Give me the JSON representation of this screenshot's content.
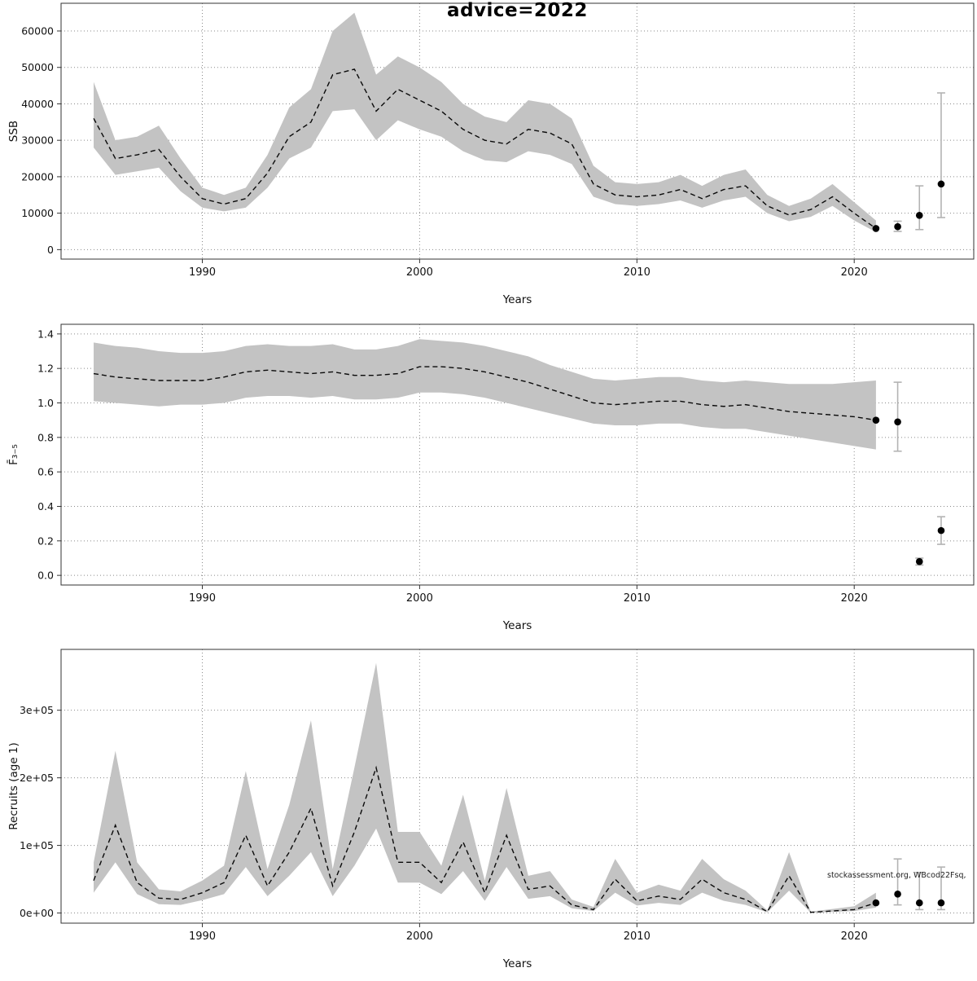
{
  "title": "advice=2022",
  "watermark": "stockassessment.org, WBcod22Fsq,",
  "xlabel": "Years",
  "chart_data": [
    {
      "type": "line",
      "title": "advice=2022",
      "ylabel": "SSB",
      "xlabel": "Years",
      "xlim": [
        1983.5,
        2025.5
      ],
      "ylim": [
        0,
        65000
      ],
      "xticks": [
        1990,
        2000,
        2010,
        2020
      ],
      "yticks": [
        0,
        10000,
        20000,
        30000,
        40000,
        50000,
        60000
      ],
      "ytick_labels": [
        "0",
        "10000",
        "20000",
        "30000",
        "40000",
        "50000",
        "60000"
      ],
      "grid": true,
      "series": [
        {
          "name": "median-with-ci",
          "x": [
            1985,
            1986,
            1987,
            1988,
            1989,
            1990,
            1991,
            1992,
            1993,
            1994,
            1995,
            1996,
            1997,
            1998,
            1999,
            2000,
            2001,
            2002,
            2003,
            2004,
            2005,
            2006,
            2007,
            2008,
            2009,
            2010,
            2011,
            2012,
            2013,
            2014,
            2015,
            2016,
            2017,
            2018,
            2019,
            2020,
            2021
          ],
          "y": [
            36000,
            25000,
            26000,
            27500,
            20000,
            14000,
            12500,
            14000,
            21000,
            31000,
            35000,
            48000,
            49500,
            38000,
            44000,
            41000,
            38000,
            33000,
            30000,
            29000,
            33000,
            32000,
            29000,
            18000,
            15000,
            14500,
            15000,
            16500,
            14000,
            16500,
            17500,
            12000,
            9500,
            11000,
            14500,
            10000,
            5800
          ],
          "lo": [
            28000,
            20500,
            21500,
            22500,
            16000,
            11500,
            10500,
            11500,
            17000,
            25000,
            28000,
            38000,
            38500,
            30000,
            35500,
            33000,
            31000,
            27000,
            24500,
            24000,
            27000,
            26000,
            23500,
            14500,
            12500,
            12000,
            12500,
            13500,
            11500,
            13500,
            14500,
            10000,
            7800,
            9000,
            12000,
            8000,
            4800
          ],
          "hi": [
            46000,
            30000,
            31000,
            34000,
            25000,
            17000,
            15000,
            17000,
            26000,
            39000,
            44000,
            60000,
            65000,
            48000,
            53000,
            50000,
            46000,
            40000,
            36500,
            35000,
            41000,
            40000,
            36000,
            23000,
            18500,
            18000,
            18500,
            20500,
            17500,
            20500,
            22000,
            15000,
            12000,
            14000,
            18000,
            13000,
            8000
          ]
        }
      ],
      "points": [
        {
          "x": 2021,
          "y": 5800
        },
        {
          "x": 2022,
          "y": 6300,
          "lo": 5000,
          "hi": 7800
        },
        {
          "x": 2023,
          "y": 9400,
          "lo": 5500,
          "hi": 17500
        },
        {
          "x": 2024,
          "y": 18000,
          "lo": 8800,
          "hi": 43000
        }
      ]
    },
    {
      "type": "line",
      "title": "",
      "ylabel": "F̄₃₋₅",
      "xlabel": "Years",
      "xlim": [
        1983.5,
        2025.5
      ],
      "ylim": [
        0,
        1.4
      ],
      "xticks": [
        1990,
        2000,
        2010,
        2020
      ],
      "yticks": [
        0.0,
        0.2,
        0.4,
        0.6,
        0.8,
        1.0,
        1.2,
        1.4
      ],
      "ytick_labels": [
        "0.0",
        "0.2",
        "0.4",
        "0.6",
        "0.8",
        "1.0",
        "1.2",
        "1.4"
      ],
      "grid": true,
      "series": [
        {
          "name": "median-with-ci",
          "x": [
            1985,
            1986,
            1987,
            1988,
            1989,
            1990,
            1991,
            1992,
            1993,
            1994,
            1995,
            1996,
            1997,
            1998,
            1999,
            2000,
            2001,
            2002,
            2003,
            2004,
            2005,
            2006,
            2007,
            2008,
            2009,
            2010,
            2011,
            2012,
            2013,
            2014,
            2015,
            2016,
            2017,
            2018,
            2019,
            2020,
            2021
          ],
          "y": [
            1.17,
            1.15,
            1.14,
            1.13,
            1.13,
            1.13,
            1.15,
            1.18,
            1.19,
            1.18,
            1.17,
            1.18,
            1.16,
            1.16,
            1.17,
            1.21,
            1.21,
            1.2,
            1.18,
            1.15,
            1.12,
            1.08,
            1.04,
            1.0,
            0.99,
            1.0,
            1.01,
            1.01,
            0.99,
            0.98,
            0.99,
            0.97,
            0.95,
            0.94,
            0.93,
            0.92,
            0.9
          ],
          "lo": [
            1.01,
            1.0,
            0.99,
            0.98,
            0.99,
            0.99,
            1.0,
            1.03,
            1.04,
            1.04,
            1.03,
            1.04,
            1.02,
            1.02,
            1.03,
            1.06,
            1.06,
            1.05,
            1.03,
            1.0,
            0.97,
            0.94,
            0.91,
            0.88,
            0.87,
            0.87,
            0.88,
            0.88,
            0.86,
            0.85,
            0.85,
            0.83,
            0.81,
            0.79,
            0.77,
            0.75,
            0.73
          ],
          "hi": [
            1.35,
            1.33,
            1.32,
            1.3,
            1.29,
            1.29,
            1.3,
            1.33,
            1.34,
            1.33,
            1.33,
            1.34,
            1.31,
            1.31,
            1.33,
            1.37,
            1.36,
            1.35,
            1.33,
            1.3,
            1.27,
            1.22,
            1.18,
            1.14,
            1.13,
            1.14,
            1.15,
            1.15,
            1.13,
            1.12,
            1.13,
            1.12,
            1.11,
            1.11,
            1.11,
            1.12,
            1.13
          ]
        }
      ],
      "points": [
        {
          "x": 2021,
          "y": 0.9
        },
        {
          "x": 2022,
          "y": 0.89,
          "lo": 0.72,
          "hi": 1.12
        },
        {
          "x": 2023,
          "y": 0.08,
          "lo": 0.06,
          "hi": 0.1
        },
        {
          "x": 2024,
          "y": 0.26,
          "lo": 0.18,
          "hi": 0.34
        }
      ]
    },
    {
      "type": "line",
      "title": "",
      "ylabel": "Recruits (age 1)",
      "xlabel": "Years",
      "xlim": [
        1983.5,
        2025.5
      ],
      "ylim": [
        0,
        375000
      ],
      "xticks": [
        1990,
        2000,
        2010,
        2020
      ],
      "yticks": [
        0,
        100000,
        200000,
        300000
      ],
      "ytick_labels": [
        "0e+00",
        "1e+05",
        "2e+05",
        "3e+05"
      ],
      "grid": true,
      "series": [
        {
          "name": "median-with-ci",
          "x": [
            1985,
            1986,
            1987,
            1988,
            1989,
            1990,
            1991,
            1992,
            1993,
            1994,
            1995,
            1996,
            1997,
            1998,
            1999,
            2000,
            2001,
            2002,
            2003,
            2004,
            2005,
            2006,
            2007,
            2008,
            2009,
            2010,
            2011,
            2012,
            2013,
            2014,
            2015,
            2016,
            2017,
            2018,
            2019,
            2020,
            2021
          ],
          "y": [
            48000,
            130000,
            45000,
            22000,
            20000,
            30000,
            45000,
            115000,
            40000,
            90000,
            155000,
            40000,
            120000,
            215000,
            75000,
            75000,
            45000,
            105000,
            30000,
            115000,
            35000,
            40000,
            12000,
            5000,
            50000,
            18000,
            25000,
            20000,
            50000,
            30000,
            20000,
            2000,
            55000,
            1000,
            3000,
            5000,
            15000
          ],
          "lo": [
            30000,
            75000,
            28000,
            13000,
            12000,
            19000,
            28000,
            68000,
            25000,
            55000,
            90000,
            25000,
            70000,
            125000,
            45000,
            45000,
            28000,
            62000,
            18000,
            68000,
            21000,
            25000,
            7000,
            3000,
            30000,
            11000,
            15000,
            12000,
            30000,
            18000,
            12000,
            1000,
            33000,
            500,
            1500,
            3000,
            8000
          ],
          "hi": [
            75000,
            240000,
            75000,
            35000,
            32000,
            48000,
            70000,
            210000,
            65000,
            160000,
            285000,
            65000,
            215000,
            370000,
            120000,
            120000,
            70000,
            175000,
            48000,
            185000,
            55000,
            62000,
            20000,
            9000,
            80000,
            30000,
            42000,
            33000,
            80000,
            50000,
            33000,
            4000,
            90000,
            2000,
            6000,
            10000,
            30000
          ]
        }
      ],
      "points": [
        {
          "x": 2021,
          "y": 15000
        },
        {
          "x": 2022,
          "y": 28000,
          "lo": 12000,
          "hi": 80000
        },
        {
          "x": 2023,
          "y": 15000,
          "lo": 5000,
          "hi": 60000
        },
        {
          "x": 2024,
          "y": 15000,
          "lo": 5000,
          "hi": 68000
        }
      ]
    }
  ],
  "colors": {
    "band": "#c3c3c3",
    "line": "#0a0a0a",
    "point": "#000000",
    "errorbar": "#b3b3b3",
    "grid": "#8a8a8a",
    "frame": "#333333"
  }
}
